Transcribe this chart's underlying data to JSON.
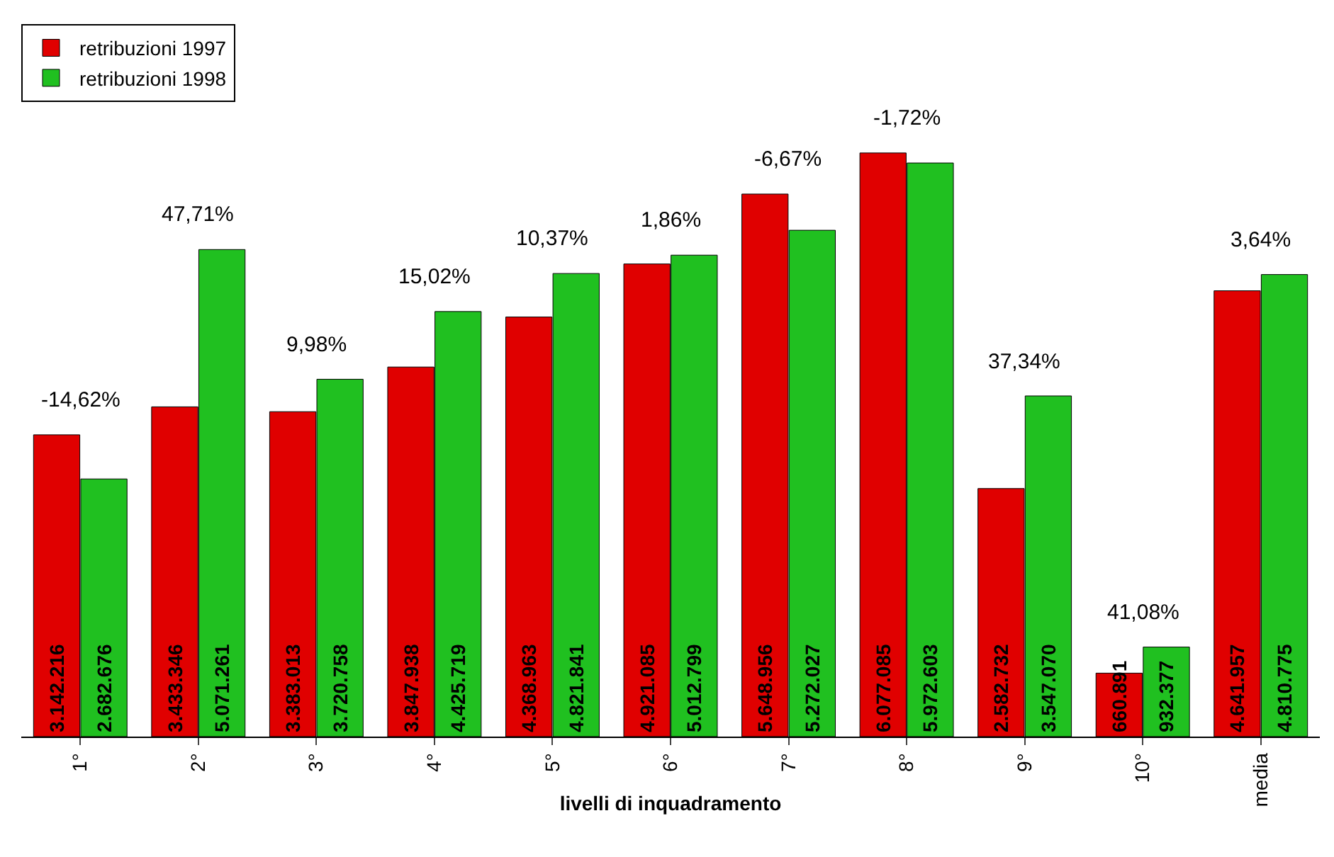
{
  "chart_data": {
    "type": "bar",
    "xlabel": "livelli di inquadramento",
    "categories": [
      "1°",
      "2°",
      "3°",
      "4°",
      "5°",
      "6°",
      "7°",
      "8°",
      "9°",
      "10°",
      "media"
    ],
    "series": [
      {
        "name": "retribuzioni 1997",
        "color": "#e00000",
        "values": [
          3142216,
          3433346,
          3383013,
          3847938,
          4368963,
          4921085,
          5648956,
          6077085,
          2582732,
          660891,
          4641957
        ],
        "value_labels": [
          "3.142.216",
          "3.433.346",
          "3.383.013",
          "3.847.938",
          "4.368.963",
          "4.921.085",
          "5.648.956",
          "6.077.085",
          "2.582.732",
          "660.891",
          "4.641.957"
        ]
      },
      {
        "name": "retribuzioni 1998",
        "color": "#20c020",
        "values": [
          2682676,
          5071261,
          3720758,
          4425719,
          4821841,
          5012799,
          5272027,
          5972603,
          3547070,
          932377,
          4810775
        ],
        "value_labels": [
          "2.682.676",
          "5.071.261",
          "3.720.758",
          "4.425.719",
          "4.821.841",
          "5.012.799",
          "5.272.027",
          "5.972.603",
          "3.547.070",
          "932.377",
          "4.810.775"
        ]
      }
    ],
    "annotations": [
      "-14,62%",
      "47,71%",
      "9,98%",
      "15,02%",
      "10,37%",
      "1,86%",
      "-6,67%",
      "-1,72%",
      "37,34%",
      "41,08%",
      "3,64%"
    ],
    "grid": false,
    "legend": "top left",
    "tick_labels": "x"
  }
}
